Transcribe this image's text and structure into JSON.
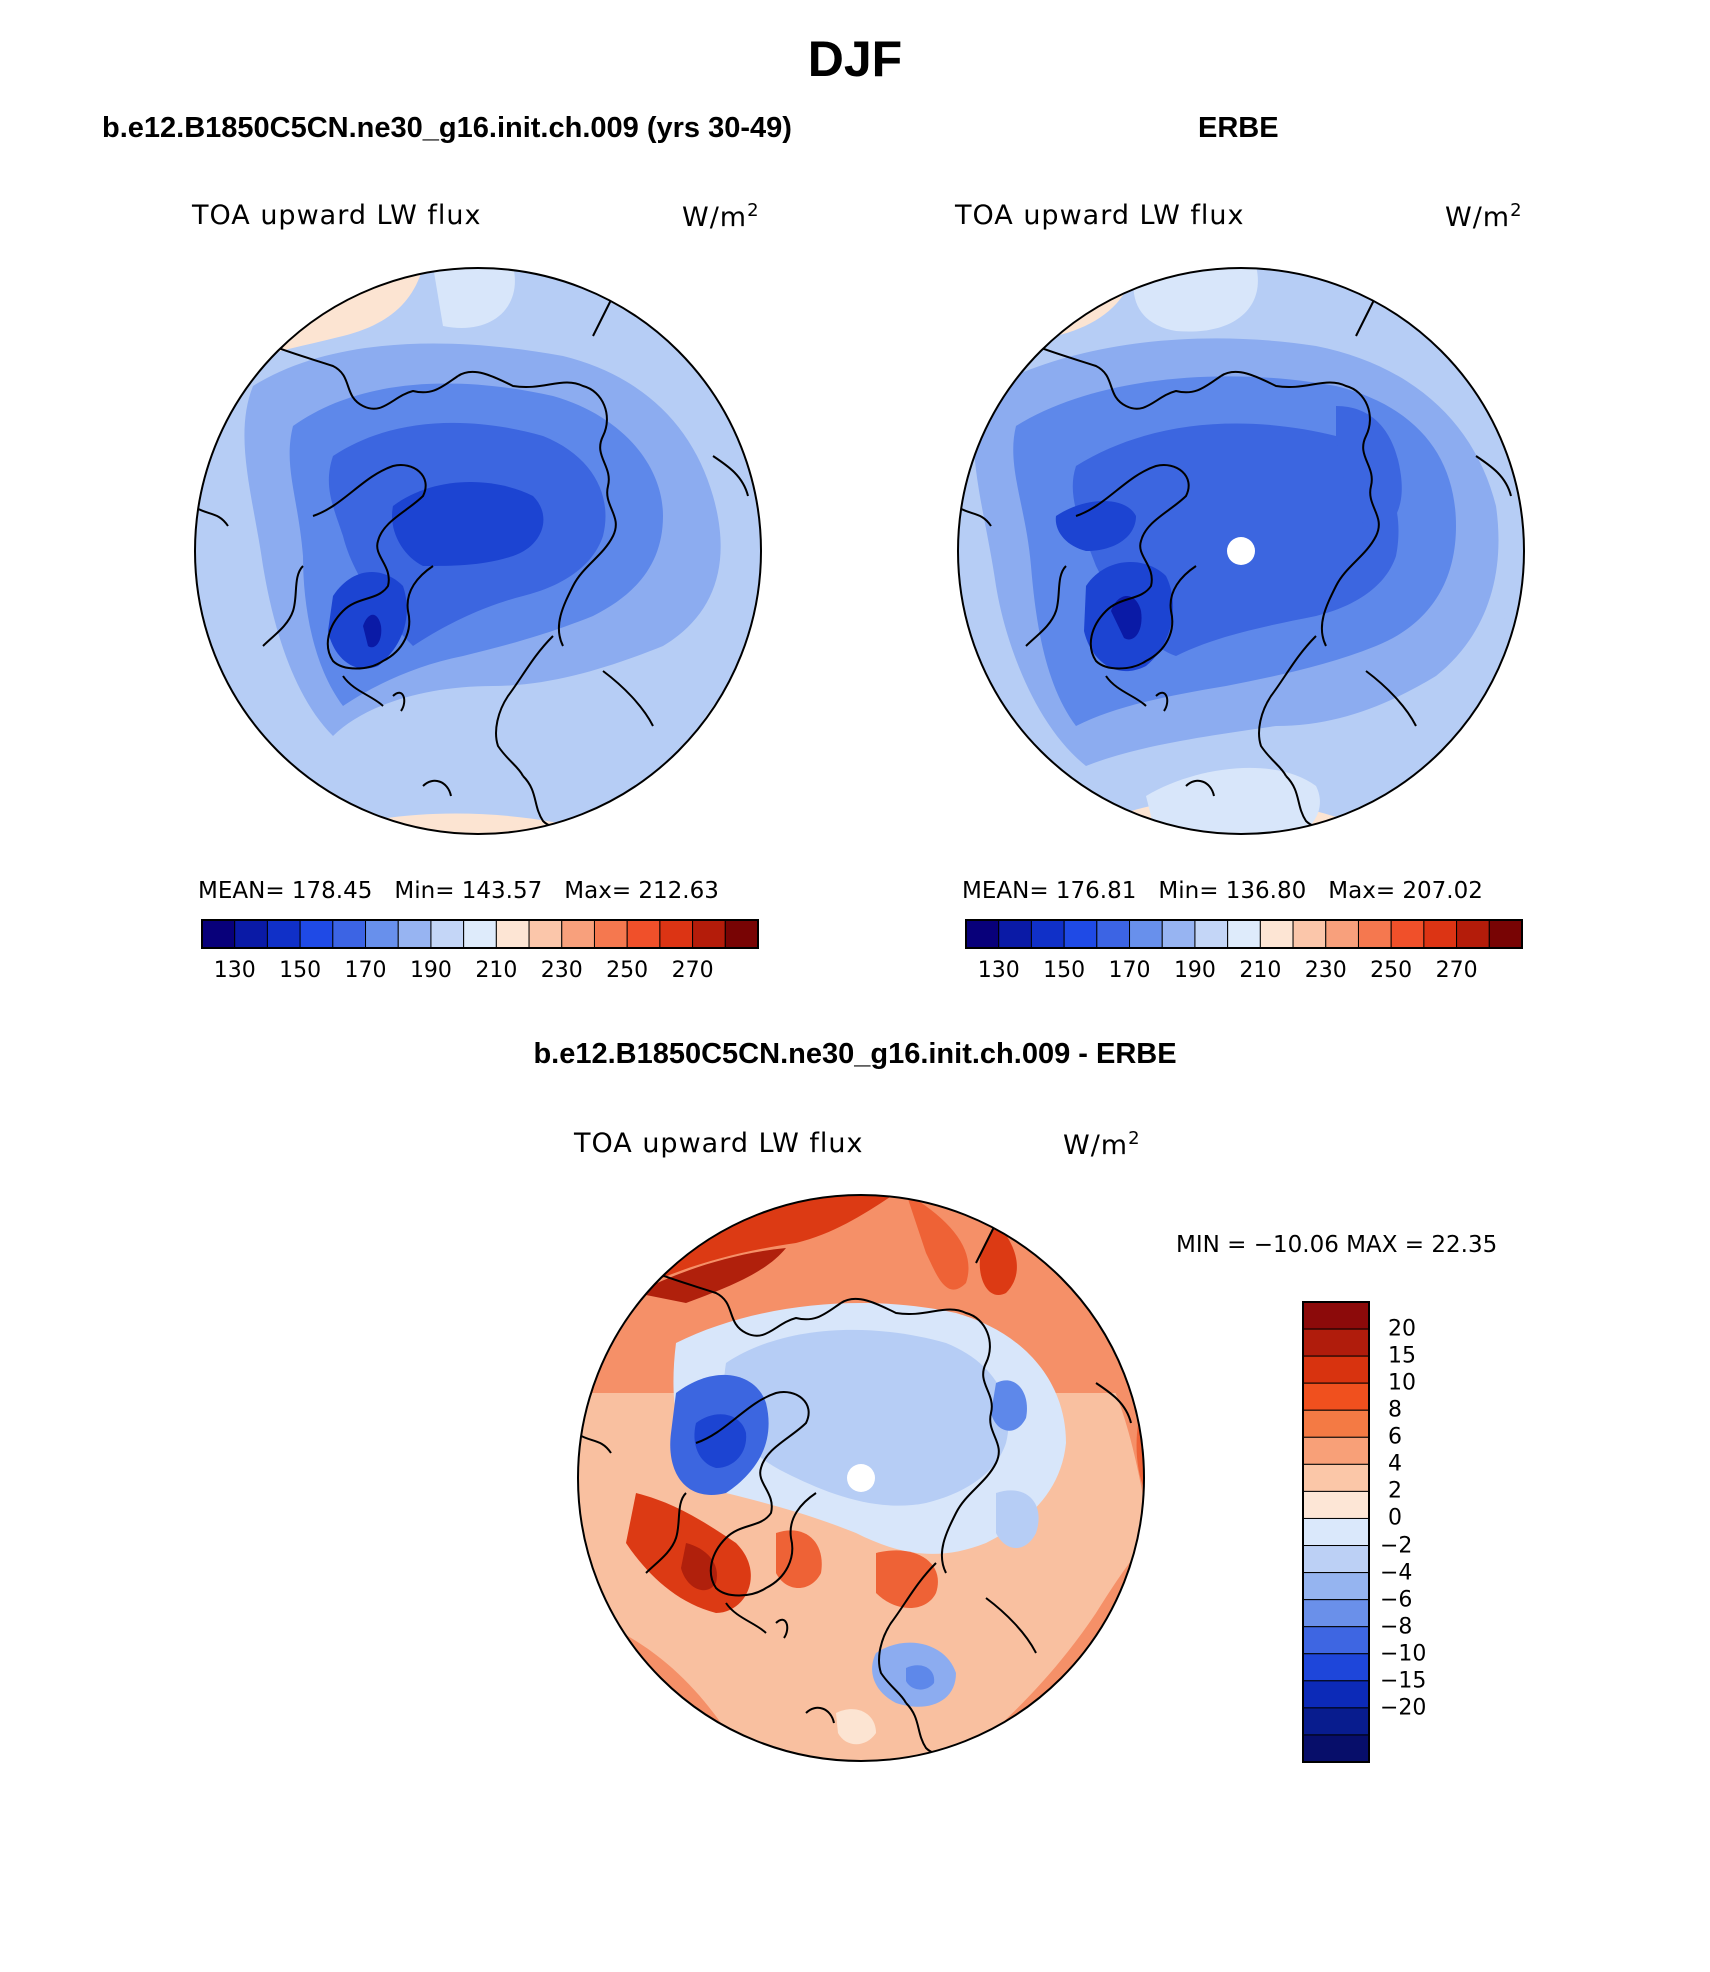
{
  "figure": {
    "title": "DJF"
  },
  "panels": [
    {
      "title": "b.e12.B1850C5CN.ne30_g16.init.ch.009 (yrs 30-49)",
      "variable": "TOA upward LW flux",
      "units_base": "W/m",
      "units_exp": "2",
      "stats": {
        "mean": "MEAN= 178.45",
        "min": "Min= 143.57",
        "max": "Max= 212.63"
      }
    },
    {
      "title": "ERBE",
      "variable": "TOA upward LW flux",
      "units_base": "W/m",
      "units_exp": "2",
      "stats": {
        "mean": "MEAN= 176.81",
        "min": "Min= 136.80",
        "max": "Max= 207.02"
      }
    },
    {
      "title": "b.e12.B1850C5CN.ne30_g16.init.ch.009 - ERBE",
      "variable": "TOA upward LW flux",
      "units_base": "W/m",
      "units_exp": "2",
      "stats": {
        "minmax": "MIN = −10.06  MAX =   22.35"
      }
    }
  ],
  "abs_colorbar": {
    "colors": [
      "#08007a",
      "#0a1aa6",
      "#1030c8",
      "#1f4ae6",
      "#3c64e4",
      "#6890ec",
      "#97b4f2",
      "#c4d6f7",
      "#deebfb",
      "#fde5d4",
      "#fbc6aa",
      "#f8a07c",
      "#f5784f",
      "#f0502a",
      "#dc3414",
      "#b41c0a",
      "#780404"
    ],
    "tick_labels": [
      "130",
      "150",
      "170",
      "190",
      "210",
      "230",
      "250",
      "270"
    ]
  },
  "diff_colorbar": {
    "colors": [
      "#8c0a0a",
      "#b01c0c",
      "#d8330f",
      "#f0501e",
      "#f47a44",
      "#f8a078",
      "#fbc7a8",
      "#fde6d6",
      "#dae8fb",
      "#bcd0f5",
      "#95b4f0",
      "#6a90ea",
      "#3e66e2",
      "#1e46da",
      "#0c2ab8",
      "#081c8e",
      "#070e6a"
    ],
    "tick_labels": [
      "20",
      "15",
      "10",
      "8",
      "6",
      "4",
      "2",
      "0",
      "−2",
      "−4",
      "−6",
      "−8",
      "−10",
      "−15",
      "−20"
    ]
  },
  "map_palette": {
    "low_deep": "#1c44d2",
    "low_mid": "#3c66e0",
    "low": "#5e88ea",
    "mid_low": "#8cacf0",
    "mid": "#b6cdf5",
    "pale_blue": "#d8e6fa",
    "pale_orange": "#fce4d2",
    "orange_light": "#f9c0a0",
    "orange": "#f59068",
    "orange_deep": "#ee6236",
    "red": "#dc3a14",
    "dark_red": "#b0200c",
    "coast": "#000000",
    "pole": "#ffffff"
  }
}
